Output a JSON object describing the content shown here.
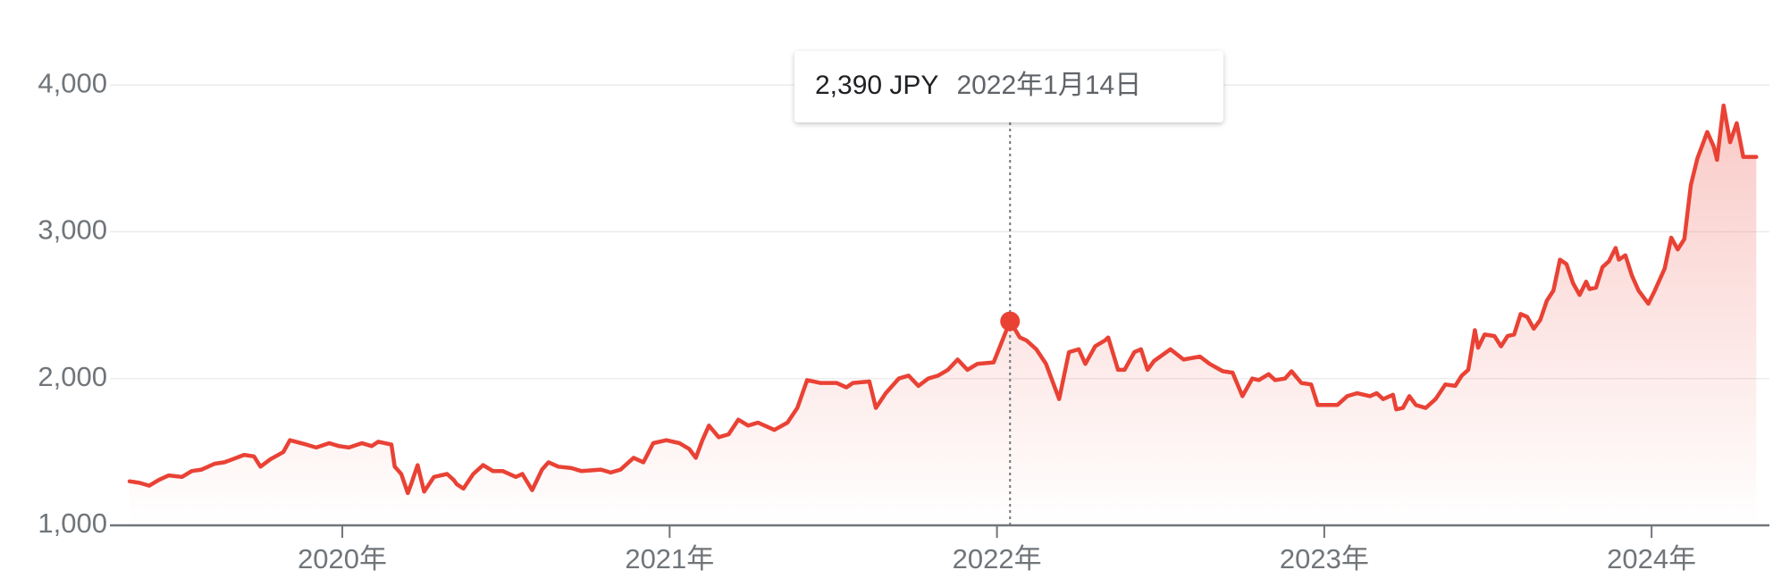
{
  "chart_data": {
    "type": "line",
    "color": "#e94235",
    "x": [
      2019.35,
      2019.38,
      2019.41,
      2019.44,
      2019.47,
      2019.51,
      2019.54,
      2019.57,
      2019.61,
      2019.64,
      2019.7,
      2019.73,
      2019.75,
      2019.78,
      2019.82,
      2019.84,
      2019.89,
      2019.92,
      2019.96,
      2019.99,
      2020.02,
      2020.06,
      2020.09,
      2020.11,
      2020.15,
      2020.16,
      2020.18,
      2020.2,
      2020.21,
      2020.23,
      2020.25,
      2020.28,
      2020.32,
      2020.34,
      2020.35,
      2020.37,
      2020.4,
      2020.43,
      2020.46,
      2020.49,
      2020.53,
      2020.55,
      2020.58,
      2020.61,
      2020.63,
      2020.66,
      2020.7,
      2020.73,
      2020.79,
      2020.82,
      2020.85,
      2020.89,
      2020.92,
      2020.95,
      2020.99,
      2021.03,
      2021.06,
      2021.08,
      2021.1,
      2021.12,
      2021.15,
      2021.18,
      2021.21,
      2021.24,
      2021.27,
      2021.32,
      2021.36,
      2021.39,
      2021.42,
      2021.46,
      2021.51,
      2021.54,
      2021.56,
      2021.61,
      2021.63,
      2021.66,
      2021.7,
      2021.73,
      2021.76,
      2021.79,
      2021.82,
      2021.85,
      2021.88,
      2021.91,
      2021.94,
      2021.99,
      2022.04,
      2022.07,
      2022.09,
      2022.12,
      2022.15,
      2022.19,
      2022.22,
      2022.25,
      2022.27,
      2022.3,
      2022.33,
      2022.34,
      2022.37,
      2022.39,
      2022.42,
      2022.44,
      2022.46,
      2022.48,
      2022.53,
      2022.57,
      2022.62,
      2022.65,
      2022.69,
      2022.72,
      2022.75,
      2022.78,
      2022.8,
      2022.83,
      2022.85,
      2022.88,
      2022.9,
      2022.93,
      2022.96,
      2022.98,
      2023.01,
      2023.04,
      2023.07,
      2023.1,
      2023.14,
      2023.16,
      2023.18,
      2023.21,
      2023.22,
      2023.24,
      2023.26,
      2023.28,
      2023.31,
      2023.34,
      2023.37,
      2023.4,
      2023.42,
      2023.44,
      2023.46,
      2023.47,
      2023.49,
      2023.52,
      2023.54,
      2023.56,
      2023.58,
      2023.6,
      2023.62,
      2023.64,
      2023.66,
      2023.68,
      2023.7,
      2023.72,
      2023.74,
      2023.76,
      2023.78,
      2023.8,
      2023.81,
      2023.83,
      2023.85,
      2023.87,
      2023.89,
      2023.9,
      2023.92,
      2023.94,
      2023.96,
      2023.99,
      2024.01,
      2024.04,
      2024.06,
      2024.08,
      2024.1,
      2024.12,
      2024.14,
      2024.17,
      2024.19,
      2024.2,
      2024.22,
      2024.24,
      2024.26,
      2024.28,
      2024.32
    ],
    "values": [
      1300,
      1290,
      1270,
      1310,
      1340,
      1330,
      1370,
      1380,
      1420,
      1430,
      1480,
      1470,
      1400,
      1450,
      1500,
      1580,
      1550,
      1530,
      1560,
      1540,
      1530,
      1560,
      1540,
      1570,
      1550,
      1400,
      1350,
      1220,
      1280,
      1410,
      1230,
      1330,
      1350,
      1310,
      1280,
      1250,
      1350,
      1410,
      1370,
      1370,
      1330,
      1350,
      1240,
      1380,
      1430,
      1400,
      1390,
      1370,
      1380,
      1360,
      1380,
      1460,
      1430,
      1560,
      1580,
      1560,
      1520,
      1460,
      1580,
      1680,
      1600,
      1620,
      1720,
      1680,
      1700,
      1650,
      1700,
      1800,
      1990,
      1970,
      1970,
      1940,
      1970,
      1980,
      1800,
      1900,
      2000,
      2020,
      1950,
      2000,
      2020,
      2060,
      2130,
      2060,
      2100,
      2110,
      2390,
      2280,
      2260,
      2200,
      2100,
      1860,
      2180,
      2200,
      2100,
      2220,
      2260,
      2280,
      2060,
      2060,
      2180,
      2200,
      2060,
      2120,
      2200,
      2130,
      2150,
      2100,
      2050,
      2040,
      1880,
      2000,
      1990,
      2030,
      1990,
      2000,
      2050,
      1970,
      1960,
      1820,
      1820,
      1820,
      1880,
      1900,
      1880,
      1900,
      1860,
      1890,
      1790,
      1800,
      1880,
      1820,
      1800,
      1860,
      1960,
      1950,
      2020,
      2060,
      2330,
      2210,
      2300,
      2290,
      2220,
      2290,
      2300,
      2440,
      2420,
      2340,
      2400,
      2530,
      2600,
      2810,
      2780,
      2650,
      2570,
      2660,
      2610,
      2620,
      2760,
      2800,
      2890,
      2810,
      2840,
      2700,
      2600,
      2510,
      2600,
      2750,
      2960,
      2880,
      2950,
      3320,
      3500,
      3680,
      3580,
      3490,
      3860,
      3610,
      3740,
      3510,
      3510
    ],
    "xlim": [
      2019.29,
      2024.36
    ],
    "ylim": [
      1000,
      4500
    ],
    "xticks": [
      {
        "value": 2020,
        "label": "2020年"
      },
      {
        "value": 2021,
        "label": "2021年"
      },
      {
        "value": 2022,
        "label": "2022年"
      },
      {
        "value": 2023,
        "label": "2023年"
      },
      {
        "value": 2024,
        "label": "2024年"
      }
    ],
    "yticks": [
      {
        "value": 1000,
        "label": "1,000"
      },
      {
        "value": 2000,
        "label": "2,000"
      },
      {
        "value": 3000,
        "label": "3,000"
      },
      {
        "value": 4000,
        "label": "4,000"
      }
    ],
    "grid": true,
    "tooltip": {
      "x": 2022.04,
      "value": 2390,
      "value_label": "2,390 JPY",
      "date_label": "2022年1月14日"
    }
  }
}
